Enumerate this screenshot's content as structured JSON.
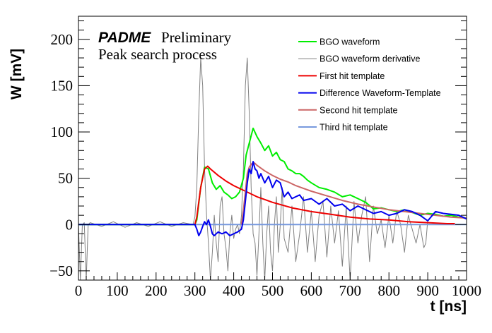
{
  "chart_data": {
    "type": "line",
    "title": "",
    "annotations": {
      "experiment": "PADME",
      "status": "Preliminary",
      "subtitle": "Peak search process"
    },
    "xlabel": "t [ns]",
    "ylabel": "W [mV]",
    "xlim": [
      0,
      1000
    ],
    "ylim": [
      -60,
      225
    ],
    "xticks": [
      "0",
      "100",
      "200",
      "300",
      "400",
      "500",
      "600",
      "700",
      "800",
      "900",
      "1000"
    ],
    "xtick_values": [
      0,
      100,
      200,
      300,
      400,
      500,
      600,
      700,
      800,
      900,
      1000
    ],
    "yticks": [
      "−50",
      "0",
      "50",
      "100",
      "150",
      "200"
    ],
    "ytick_values": [
      -50,
      0,
      50,
      100,
      150,
      200
    ],
    "grid": false,
    "legend_position": "top-right",
    "series": [
      {
        "name": "BGO waveform",
        "color": "#00ee00",
        "width": 2,
        "x": [
          0,
          50,
          100,
          150,
          200,
          250,
          300,
          305,
          315,
          325,
          335,
          345,
          355,
          365,
          375,
          385,
          395,
          405,
          415,
          425,
          432,
          440,
          450,
          460,
          470,
          480,
          490,
          500,
          510,
          520,
          530,
          540,
          550,
          560,
          570,
          580,
          590,
          600,
          620,
          640,
          660,
          680,
          700,
          720,
          740,
          760,
          780,
          800,
          820,
          840,
          860,
          880,
          900,
          920,
          940,
          960,
          980,
          1000
        ],
        "y": [
          0,
          0,
          0,
          0,
          0,
          0,
          0,
          5,
          40,
          62,
          60,
          45,
          38,
          42,
          35,
          32,
          28,
          30,
          35,
          50,
          75,
          88,
          104,
          95,
          88,
          80,
          85,
          74,
          78,
          70,
          68,
          60,
          58,
          55,
          55,
          52,
          48,
          45,
          40,
          38,
          35,
          30,
          32,
          28,
          24,
          17,
          18,
          16,
          14,
          16,
          13,
          10,
          12,
          11,
          9,
          10,
          8,
          7
        ]
      },
      {
        "name": "BGO waveform derivative",
        "color": "#808080",
        "width": 1,
        "x": [
          0,
          5,
          10,
          15,
          20,
          25,
          30,
          60,
          90,
          120,
          150,
          180,
          210,
          240,
          270,
          295,
          300,
          305,
          310,
          315,
          320,
          325,
          330,
          335,
          340,
          345,
          350,
          355,
          360,
          365,
          370,
          375,
          380,
          385,
          390,
          395,
          400,
          405,
          410,
          415,
          420,
          425,
          430,
          435,
          440,
          445,
          450,
          455,
          460,
          465,
          470,
          475,
          480,
          485,
          490,
          495,
          500,
          505,
          510,
          515,
          520,
          525,
          530,
          540,
          550,
          560,
          570,
          580,
          590,
          600,
          610,
          620,
          630,
          640,
          650,
          660,
          670,
          680,
          690,
          700,
          710,
          720,
          730,
          740,
          750,
          760,
          770,
          780,
          790,
          800,
          810,
          820,
          830,
          840,
          850,
          860,
          870,
          880,
          890,
          895,
          900
        ],
        "y": [
          0,
          -60,
          0,
          2,
          -60,
          0,
          2,
          -2,
          3,
          -3,
          2,
          -2,
          3,
          -2,
          2,
          0,
          8,
          40,
          120,
          180,
          150,
          60,
          10,
          -20,
          -60,
          -30,
          10,
          -20,
          -40,
          20,
          30,
          -10,
          -25,
          -50,
          -10,
          10,
          -15,
          -5,
          0,
          -10,
          10,
          60,
          150,
          180,
          120,
          40,
          -10,
          -20,
          -55,
          -10,
          40,
          -20,
          -60,
          -10,
          20,
          -30,
          -50,
          0,
          30,
          -30,
          0,
          40,
          -15,
          -30,
          20,
          -40,
          -10,
          30,
          -30,
          15,
          -40,
          10,
          25,
          -35,
          20,
          -20,
          15,
          -45,
          20,
          -60,
          25,
          -20,
          10,
          30,
          -40,
          20,
          -10,
          5,
          -25,
          10,
          -20,
          15,
          0,
          -30,
          10,
          -5,
          -20,
          0,
          -25,
          -20,
          5
        ]
      },
      {
        "name": "First hit template",
        "color": "#ee0000",
        "width": 2,
        "x": [
          300,
          305,
          315,
          325,
          333,
          340,
          360,
          380,
          400,
          420,
          440,
          460,
          480,
          500,
          550,
          600,
          650,
          700,
          750,
          800,
          850,
          900,
          950,
          970
        ],
        "y": [
          0,
          8,
          40,
          60,
          63,
          60,
          53,
          47,
          42,
          38,
          34,
          30,
          27,
          24,
          18,
          14,
          11,
          8,
          6,
          5,
          3,
          2,
          1,
          1
        ]
      },
      {
        "name": "Difference Waveform-Template",
        "color": "#0000ee",
        "width": 2,
        "x": [
          0,
          50,
          100,
          150,
          200,
          250,
          300,
          305,
          310,
          315,
          320,
          325,
          330,
          335,
          340,
          345,
          350,
          360,
          370,
          380,
          390,
          400,
          410,
          420,
          425,
          430,
          435,
          440,
          445,
          450,
          455,
          460,
          465,
          470,
          480,
          490,
          500,
          510,
          520,
          530,
          540,
          550,
          560,
          570,
          580,
          600,
          620,
          640,
          660,
          680,
          700,
          720,
          740,
          760,
          780,
          800,
          820,
          840,
          860,
          880,
          900,
          920,
          940,
          960,
          980,
          1000
        ],
        "y": [
          0,
          0,
          0,
          0,
          0,
          0,
          0,
          -5,
          -12,
          -8,
          -2,
          3,
          0,
          5,
          -2,
          -10,
          -12,
          -8,
          -10,
          -8,
          -12,
          -10,
          -8,
          -5,
          5,
          25,
          45,
          60,
          55,
          68,
          60,
          58,
          50,
          55,
          45,
          52,
          40,
          48,
          45,
          30,
          35,
          28,
          30,
          32,
          26,
          28,
          22,
          28,
          20,
          22,
          15,
          20,
          16,
          12,
          14,
          10,
          12,
          16,
          14,
          10,
          4,
          14,
          12,
          11,
          10,
          6
        ]
      },
      {
        "name": "Second hit template",
        "color": "#cc6666",
        "width": 2,
        "x": [
          420,
          425,
          430,
          435,
          440,
          445,
          450,
          455,
          460,
          480,
          500,
          520,
          540,
          560,
          580,
          600,
          640,
          680,
          720,
          760,
          800,
          840,
          880,
          920,
          960,
          1000
        ],
        "y": [
          0,
          15,
          35,
          55,
          62,
          65,
          67,
          66,
          64,
          58,
          53,
          49,
          46,
          42,
          39,
          36,
          31,
          26,
          22,
          19,
          16,
          14,
          12,
          10,
          8,
          7
        ]
      },
      {
        "name": "Third hit template",
        "color": "#7799dd",
        "width": 2,
        "x": [
          0,
          1000
        ],
        "y": [
          0,
          0
        ]
      }
    ]
  }
}
